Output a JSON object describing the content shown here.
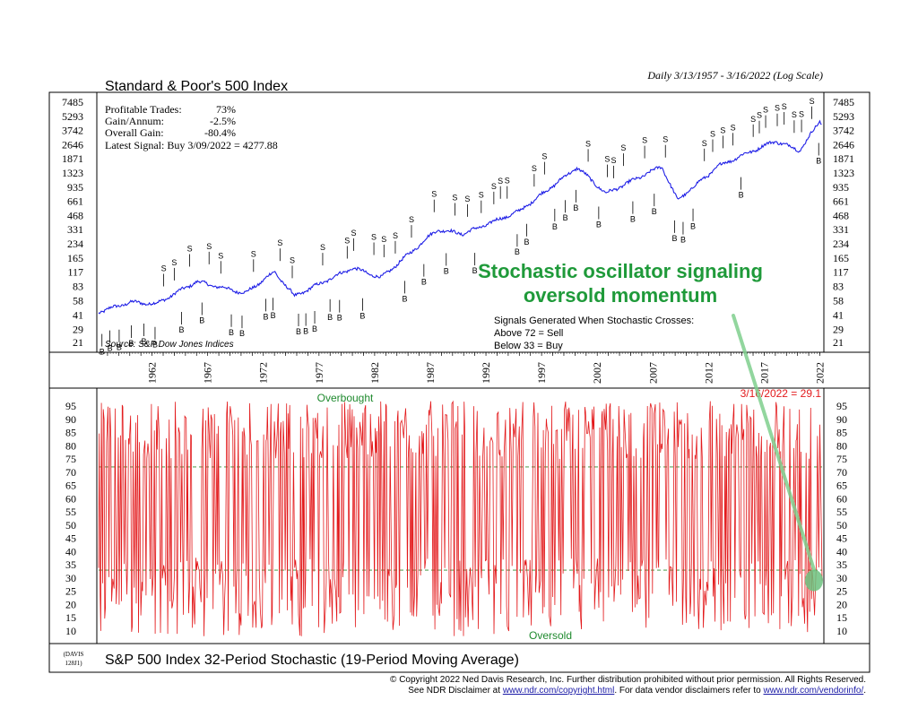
{
  "header": {
    "date_range": "Daily 3/13/1957 - 3/16/2022 (Log Scale)"
  },
  "top_panel": {
    "title": "Standard & Poor's 500 Index",
    "stats": [
      {
        "label": "Profitable Trades:",
        "value": "73%"
      },
      {
        "label": "Gain/Annum:",
        "value": "-2.5%"
      },
      {
        "label": "Overall Gain:",
        "value": "-80.4%"
      }
    ],
    "latest_signal": "Latest Signal: Buy 3/09/2022 = 4277.88",
    "source": "Source: S&P Dow Jones Indices",
    "annotation_line1": "Stochastic oscillator signaling",
    "annotation_line2": "oversold momentum",
    "signals_note": [
      "Signals Generated When Stochastic Crosses:",
      "Above 72 = Sell",
      "Below 33 = Buy"
    ],
    "sell_marker": "S",
    "buy_marker": "B"
  },
  "bottom_panel": {
    "title": "S&P 500 Index 32-Period Stochastic (19-Period Moving Average)",
    "overbought_label": "Overbought",
    "oversold_label": "Oversold",
    "latest_label": "3/16/2022 = 29.1"
  },
  "footer": {
    "davis_code_line1": "(DAVIS",
    "davis_code_line2": "128J1)",
    "copyright": "© Copyright 2022 Ned Davis Research, Inc.  Further distribution prohibited without prior permission.  All Rights Reserved.",
    "disclaimer_pre": "See NDR Disclaimer at ",
    "disclaimer_link1": "www.ndr.com/copyright.html",
    "disclaimer_mid": ". For data vendor disclaimers refer to ",
    "disclaimer_link2": "www.ndr.com/vendorinfo/",
    "disclaimer_post": "."
  },
  "colors": {
    "price_line": "#1f1fe6",
    "stochastic_line": "#e31a1c",
    "annotation": "#1f9a3a",
    "threshold_dash": "#2e8b2e",
    "link": "#1a1aa6"
  },
  "chart_data": [
    {
      "type": "line",
      "title": "Standard & Poor's 500 Index",
      "y_scale": "log",
      "x_ticks": [
        "1962",
        "1967",
        "1972",
        "1977",
        "1982",
        "1987",
        "1992",
        "1997",
        "2002",
        "2007",
        "2012",
        "2017",
        "2022"
      ],
      "y_ticks": [
        "7485",
        "5293",
        "3742",
        "2646",
        "1871",
        "1323",
        "935",
        "661",
        "468",
        "331",
        "234",
        "165",
        "117",
        "83",
        "58",
        "41",
        "29",
        "21"
      ],
      "series": [
        {
          "x": [
            1957.2,
            1960,
            1962.4,
            1966,
            1970.4,
            1973,
            1974.8,
            1980,
            1982.6,
            1987.6,
            1990,
            1995,
            2000.2,
            2002.8,
            2007.8,
            2009.2,
            2013,
            2018,
            2020.2,
            2022.0,
            2022.2
          ],
          "values": [
            44,
            56,
            54,
            93,
            70,
            118,
            65,
            130,
            102,
            330,
            300,
            520,
            1520,
            800,
            1560,
            680,
            1600,
            2900,
            2300,
            4700,
            4280
          ]
        }
      ]
    },
    {
      "type": "line",
      "title": "S&P 500 Index 32-Period Stochastic (19-Period Moving Average)",
      "y_ticks": [
        "95",
        "90",
        "85",
        "80",
        "75",
        "70",
        "65",
        "60",
        "55",
        "50",
        "45",
        "40",
        "35",
        "30",
        "25",
        "20",
        "15",
        "10"
      ],
      "ylim": [
        5,
        98
      ],
      "thresholds": {
        "sell": 72,
        "buy": 33
      },
      "latest": {
        "date": "3/16/2022",
        "value": 29.1
      },
      "x_range": [
        1957.2,
        2022.2
      ]
    }
  ]
}
